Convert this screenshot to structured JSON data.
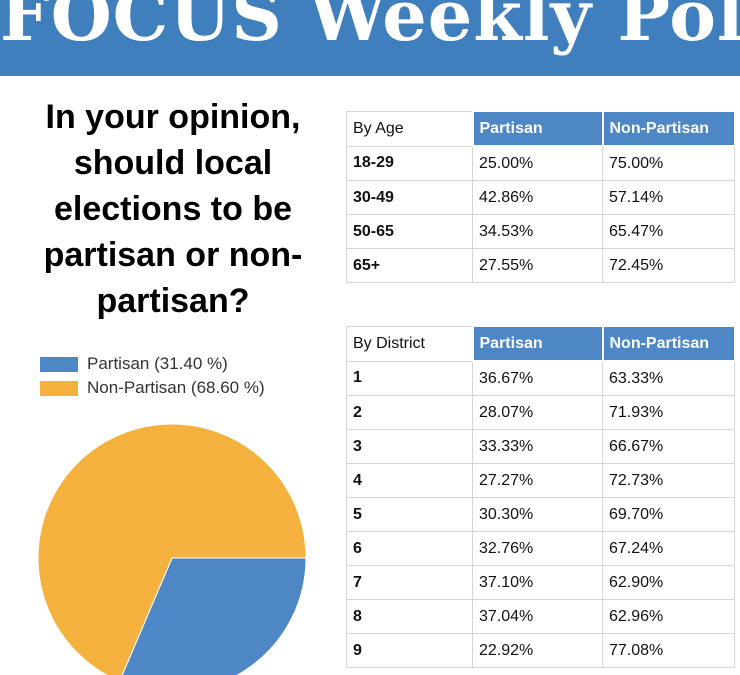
{
  "banner": {
    "title": "FOCUS Weekly Poll"
  },
  "question": "In your opinion, should local elections to be partisan or non-partisan?",
  "colors": {
    "banner": "#3f7fbd",
    "partisan": "#4e87c5",
    "non_partisan": "#f5b13d",
    "header_fill": "#4e87c5"
  },
  "chart_data": {
    "type": "pie",
    "labels": [
      "Partisan (31.40 %)",
      "Non-Partisan (68.60 %)"
    ],
    "values": [
      31.4,
      68.6
    ],
    "colors": [
      "#4e87c5",
      "#f5b13d"
    ],
    "legend_position": "top-left"
  },
  "age_table": {
    "headers": [
      "By Age",
      "Partisan",
      "Non-Partisan"
    ],
    "rows": [
      [
        "18-29",
        "25.00%",
        "75.00%"
      ],
      [
        "30-49",
        "42.86%",
        "57.14%"
      ],
      [
        "50-65",
        "34.53%",
        "65.47%"
      ],
      [
        "65+",
        "27.55%",
        "72.45%"
      ]
    ]
  },
  "district_table": {
    "headers": [
      "By District",
      "Partisan",
      "Non-Partisan"
    ],
    "rows": [
      [
        "1",
        "36.67%",
        "63.33%"
      ],
      [
        "2",
        "28.07%",
        "71.93%"
      ],
      [
        "3",
        "33.33%",
        "66.67%"
      ],
      [
        "4",
        "27.27%",
        "72.73%"
      ],
      [
        "5",
        "30.30%",
        "69.70%"
      ],
      [
        "6",
        "32.76%",
        "67.24%"
      ],
      [
        "7",
        "37.10%",
        "62.90%"
      ],
      [
        "8",
        "37.04%",
        "62.96%"
      ],
      [
        "9",
        "22.92%",
        "77.08%"
      ]
    ]
  }
}
